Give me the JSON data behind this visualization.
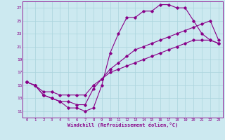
{
  "xlabel": "Windchill (Refroidissement éolien,°C)",
  "xlim": [
    -0.5,
    23.5
  ],
  "ylim": [
    10.0,
    28.0
  ],
  "yticks": [
    11,
    13,
    15,
    17,
    19,
    21,
    23,
    25,
    27
  ],
  "xticks": [
    0,
    1,
    2,
    3,
    4,
    5,
    6,
    7,
    8,
    9,
    10,
    11,
    12,
    13,
    14,
    15,
    16,
    17,
    18,
    19,
    20,
    21,
    22,
    23
  ],
  "bg_color": "#cce9f0",
  "line_color": "#880088",
  "grid_color": "#aad4dd",
  "line1_x": [
    0,
    1,
    2,
    3,
    4,
    5,
    6,
    7,
    8,
    9,
    10,
    11,
    12,
    13,
    14,
    15,
    16,
    17,
    18,
    19,
    20,
    21,
    22,
    23
  ],
  "line1_y": [
    15.5,
    15.0,
    13.5,
    13.0,
    12.5,
    11.5,
    11.5,
    11.0,
    11.5,
    15.0,
    20.0,
    23.0,
    25.5,
    25.5,
    26.5,
    26.5,
    27.5,
    27.5,
    27.0,
    27.0,
    25.0,
    23.0,
    22.0,
    21.5
  ],
  "line2_x": [
    0,
    1,
    2,
    3,
    4,
    5,
    6,
    7,
    8,
    9,
    10,
    11,
    12,
    13,
    14,
    15,
    16,
    17,
    18,
    19,
    20,
    21,
    22,
    23
  ],
  "line2_y": [
    15.5,
    15.0,
    13.5,
    13.0,
    12.5,
    12.5,
    12.0,
    12.0,
    14.5,
    16.0,
    17.5,
    18.5,
    19.5,
    20.5,
    21.0,
    21.5,
    22.0,
    22.5,
    23.0,
    23.5,
    24.0,
    24.5,
    25.0,
    22.0
  ],
  "line3_x": [
    0,
    1,
    2,
    3,
    4,
    5,
    6,
    7,
    8,
    9,
    10,
    11,
    12,
    13,
    14,
    15,
    16,
    17,
    18,
    19,
    20,
    21,
    22,
    23
  ],
  "line3_y": [
    15.5,
    15.0,
    14.0,
    14.0,
    13.5,
    13.5,
    13.5,
    13.5,
    15.0,
    16.0,
    17.0,
    17.5,
    18.0,
    18.5,
    19.0,
    19.5,
    20.0,
    20.5,
    21.0,
    21.5,
    22.0,
    22.0,
    22.0,
    21.5
  ]
}
